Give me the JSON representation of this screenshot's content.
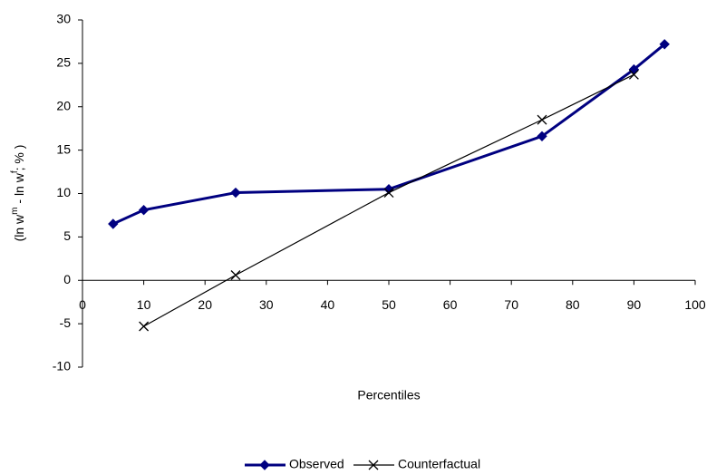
{
  "chart_data": {
    "type": "line",
    "x_label": "Percentiles",
    "y_label": [
      "(ln w",
      "m",
      " - ln w",
      "f",
      "; % )"
    ],
    "x": [
      5,
      10,
      25,
      50,
      75,
      90,
      95
    ],
    "series": [
      {
        "name": "Observed",
        "color": "#000080",
        "marker": "diamond",
        "values": [
          6.5,
          8.1,
          10.1,
          10.5,
          16.6,
          24.3,
          27.2
        ]
      },
      {
        "name": "Counterfactual",
        "color": "#000000",
        "marker": "x",
        "values": [
          null,
          -5.3,
          0.6,
          10.1,
          18.5,
          23.7,
          null
        ]
      }
    ],
    "xlim": [
      0,
      100
    ],
    "xticks": [
      0,
      10,
      20,
      30,
      40,
      50,
      60,
      70,
      80,
      90,
      100
    ],
    "ylim": [
      -10,
      30
    ],
    "yticks": [
      -10,
      -5,
      0,
      5,
      10,
      15,
      20,
      25,
      30
    ],
    "grid": false,
    "legend": "bottom"
  }
}
